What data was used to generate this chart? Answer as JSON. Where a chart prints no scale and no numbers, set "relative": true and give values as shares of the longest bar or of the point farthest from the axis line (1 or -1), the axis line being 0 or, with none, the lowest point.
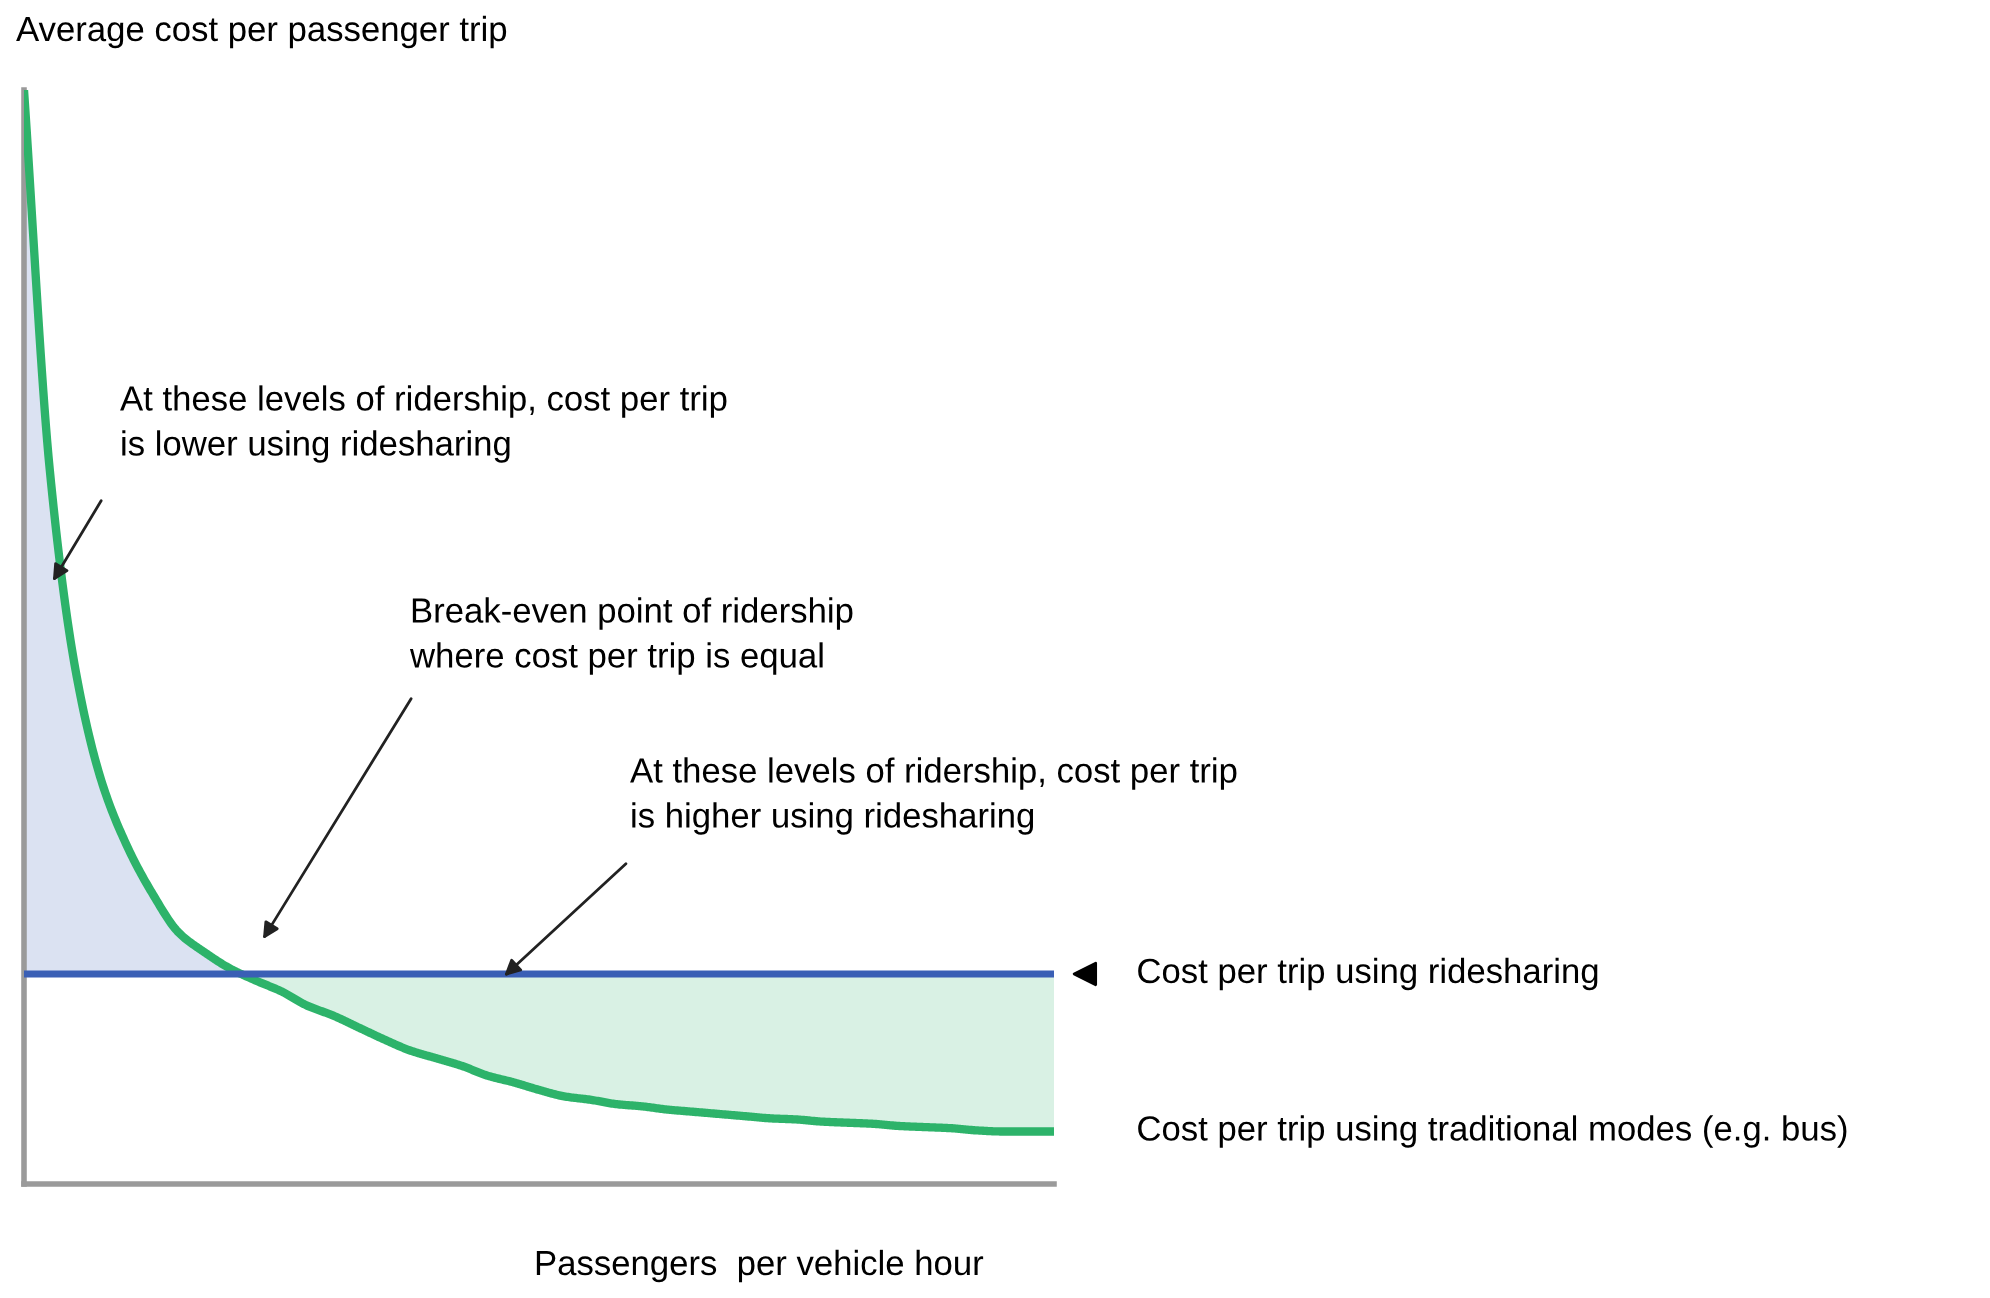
{
  "chart_data": {
    "type": "line",
    "relative": true,
    "ylabel": "Average cost per passenger trip",
    "xlabel": "Passengers  per vehicle hour",
    "categories": [
      null,
      null,
      null,
      null,
      null,
      null,
      null,
      null,
      null,
      null,
      null,
      null,
      null,
      null,
      null,
      null,
      null,
      null,
      null,
      null,
      null,
      null,
      null,
      null,
      null,
      null,
      null,
      null,
      null,
      null,
      null,
      null,
      null,
      null,
      null,
      null,
      null,
      null,
      null,
      null,
      null
    ],
    "series": [
      {
        "name": "Cost per trip using traditional modes (e.g. bus)",
        "color": "#2db36a",
        "values": [
          1.0,
          0.653,
          0.47,
          0.369,
          0.309,
          0.265,
          0.23,
          0.212,
          0.197,
          0.186,
          0.176,
          0.163,
          0.154,
          0.143,
          0.132,
          0.122,
          0.115,
          0.108,
          0.099,
          0.093,
          0.086,
          0.08,
          0.077,
          0.073,
          0.071,
          0.068,
          0.066,
          0.064,
          0.062,
          0.06,
          0.059,
          0.057,
          0.056,
          0.055,
          0.053,
          0.052,
          0.051,
          0.049,
          0.048,
          0.048,
          0.048
        ],
        "lower": [
          null,
          null,
          null,
          null,
          null,
          null,
          null,
          null,
          null,
          0.186,
          0.176,
          0.163,
          0.154,
          0.143,
          0.132,
          0.122,
          0.115,
          0.108,
          0.099,
          0.093,
          0.086,
          0.08,
          0.077,
          0.073,
          0.071,
          0.068,
          0.066,
          0.064,
          0.062,
          0.06,
          0.059,
          0.057,
          0.056,
          0.055,
          0.053,
          0.052,
          0.051,
          0.049,
          0.048,
          0.048,
          0.048
        ],
        "upper": [
          null,
          null,
          null,
          null,
          null,
          null,
          null,
          null,
          null,
          0.192,
          0.192,
          0.192,
          0.192,
          0.192,
          0.192,
          0.192,
          0.192,
          0.192,
          0.192,
          0.192,
          0.192,
          0.192,
          0.192,
          0.192,
          0.192,
          0.192,
          0.192,
          0.192,
          0.192,
          0.192,
          0.192,
          0.192,
          0.192,
          0.192,
          0.192,
          0.192,
          0.192,
          0.192,
          0.192,
          0.192,
          0.192
        ]
      },
      {
        "name": "Cost per trip using ridesharing",
        "color": "#3a5fb5",
        "values": [
          0.192,
          0.192,
          0.192,
          0.192,
          0.192,
          0.192,
          0.192,
          0.192,
          0.192,
          0.192,
          0.192,
          0.192,
          0.192,
          0.192,
          0.192,
          0.192,
          0.192,
          0.192,
          0.192,
          0.192,
          0.192,
          0.192,
          0.192,
          0.192,
          0.192,
          0.192,
          0.192,
          0.192,
          0.192,
          0.192,
          0.192,
          0.192,
          0.192,
          0.192,
          0.192,
          0.192,
          0.192,
          0.192,
          0.192,
          0.192,
          0.192
        ],
        "lower": [
          0.192,
          0.192,
          0.192,
          0.192,
          0.192,
          0.192,
          0.192,
          0.192,
          0.192,
          null,
          null,
          null,
          null,
          null,
          null,
          null,
          null,
          null,
          null,
          null,
          null,
          null,
          null,
          null,
          null,
          null,
          null,
          null,
          null,
          null,
          null,
          null,
          null,
          null,
          null,
          null,
          null,
          null,
          null,
          null,
          null
        ],
        "upper": [
          1.0,
          0.653,
          0.47,
          0.369,
          0.309,
          0.265,
          0.23,
          0.212,
          0.197,
          null,
          null,
          null,
          null,
          null,
          null,
          null,
          null,
          null,
          null,
          null,
          null,
          null,
          null,
          null,
          null,
          null,
          null,
          null,
          null,
          null,
          null,
          null,
          null,
          null,
          null,
          null,
          null,
          null,
          null,
          null,
          null
        ]
      }
    ],
    "annotations": [
      "At these levels of ridership, cost per trip\nis lower using ridesharing",
      "Break-even point of ridership\nwhere cost per trip is equal",
      "At these levels of ridership, cost per trip\nis higher using ridesharing"
    ],
    "legend": false,
    "marker": "none",
    "line_style": "solid"
  }
}
